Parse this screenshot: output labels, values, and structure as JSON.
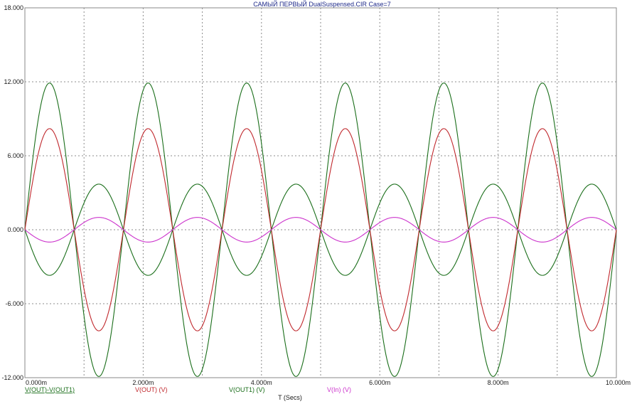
{
  "chart_data": {
    "type": "line",
    "title": "САМЫЙ ПЕРВЫЙ DualSuspensed.CIR Case=7",
    "xlabel": "T (Secs)",
    "ylabel": "",
    "xlim": [
      0,
      0.01
    ],
    "ylim": [
      -12,
      18
    ],
    "x_ticks": [
      0,
      0.002,
      0.004,
      0.006,
      0.008,
      0.01
    ],
    "x_tick_labels": [
      "0.000m",
      "2.000m",
      "4.000m",
      "6.000m",
      "8.000m",
      "10.000m"
    ],
    "y_ticks": [
      -12,
      -6,
      0,
      6,
      12,
      18
    ],
    "y_tick_labels": [
      "-12.000",
      "-6.000",
      "0.000",
      "6.000",
      "12.000",
      "18.000"
    ],
    "grid": true,
    "legend_position": "bottom",
    "frequency_hz": 600,
    "series": [
      {
        "name": "V(OUT)-V(OUT1)",
        "amplitude": 11.9,
        "phase_sign": 1,
        "color": "#1a6e1a",
        "underline": true
      },
      {
        "name": "V(OUT) (V)",
        "amplitude": 8.2,
        "phase_sign": 1,
        "color": "#c0282d",
        "underline": false
      },
      {
        "name": "V(OUT1) (V)",
        "amplitude": 3.7,
        "phase_sign": -1,
        "color": "#1a6e1a",
        "underline": false
      },
      {
        "name": "V(In) (V)",
        "amplitude": 1.0,
        "phase_sign": -1,
        "color": "#cc33cc",
        "underline": false
      }
    ]
  }
}
